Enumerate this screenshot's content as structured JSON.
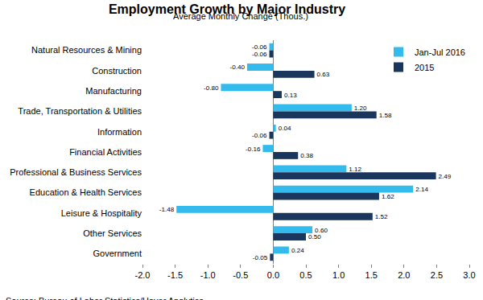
{
  "chart_data": {
    "type": "bar",
    "orientation": "horizontal",
    "title": "Employment Growth by Major Industry",
    "subtitle": "Average Monthly Change (Thous.)",
    "annotations": [
      "Source: Bureau of Labor Statistics/Haver Analytics"
    ],
    "categories": [
      "Natural Resources & Mining",
      "Construction",
      "Manufacturing",
      "Trade, Transportation & Utilities",
      "Information",
      "Financial Activities",
      "Professional & Business Services",
      "Education & Health Services",
      "Leisure & Hospitality",
      "Other Services",
      "Government"
    ],
    "series": [
      {
        "name": "Jan-Jul 2016",
        "color": "#33bbee",
        "values": [
          -0.06,
          -0.4,
          -0.8,
          1.2,
          0.04,
          -0.16,
          1.12,
          2.14,
          -1.48,
          0.6,
          0.24
        ],
        "value_labels": [
          "-0.06",
          "-0.40",
          "-0.80",
          "1.20",
          "0.04",
          "-0.16",
          "1.12",
          "2.14",
          "-1.48",
          "0.60",
          "0.24"
        ]
      },
      {
        "name": "2015",
        "color": "#1b365d",
        "values": [
          -0.06,
          0.63,
          0.13,
          1.58,
          -0.06,
          0.38,
          2.49,
          1.62,
          1.52,
          0.5,
          -0.05
        ],
        "value_labels": [
          "-0.06",
          "0.63",
          "0.13",
          "1.58",
          "-0.06",
          "0.38",
          "2.49",
          "1.62",
          "1.52",
          "0.50",
          "-0.05"
        ]
      }
    ],
    "xlim": [
      -2,
      3
    ],
    "xticks": [
      {
        "value": -2,
        "label": "-2.0"
      },
      {
        "value": -1.5,
        "label": "-1.5"
      },
      {
        "value": -1,
        "label": "-1.0"
      },
      {
        "value": -0.5,
        "label": "-0.5"
      },
      {
        "value": 0,
        "label": "0.0"
      },
      {
        "value": 0.5,
        "label": "0.5"
      },
      {
        "value": 1,
        "label": "1.0"
      },
      {
        "value": 1.5,
        "label": "1.5"
      },
      {
        "value": 2,
        "label": "2.0"
      },
      {
        "value": 2.5,
        "label": "2.5"
      },
      {
        "value": 3,
        "label": "3.0"
      }
    ],
    "grid": false,
    "legend": "upper right",
    "data_labels": true
  }
}
